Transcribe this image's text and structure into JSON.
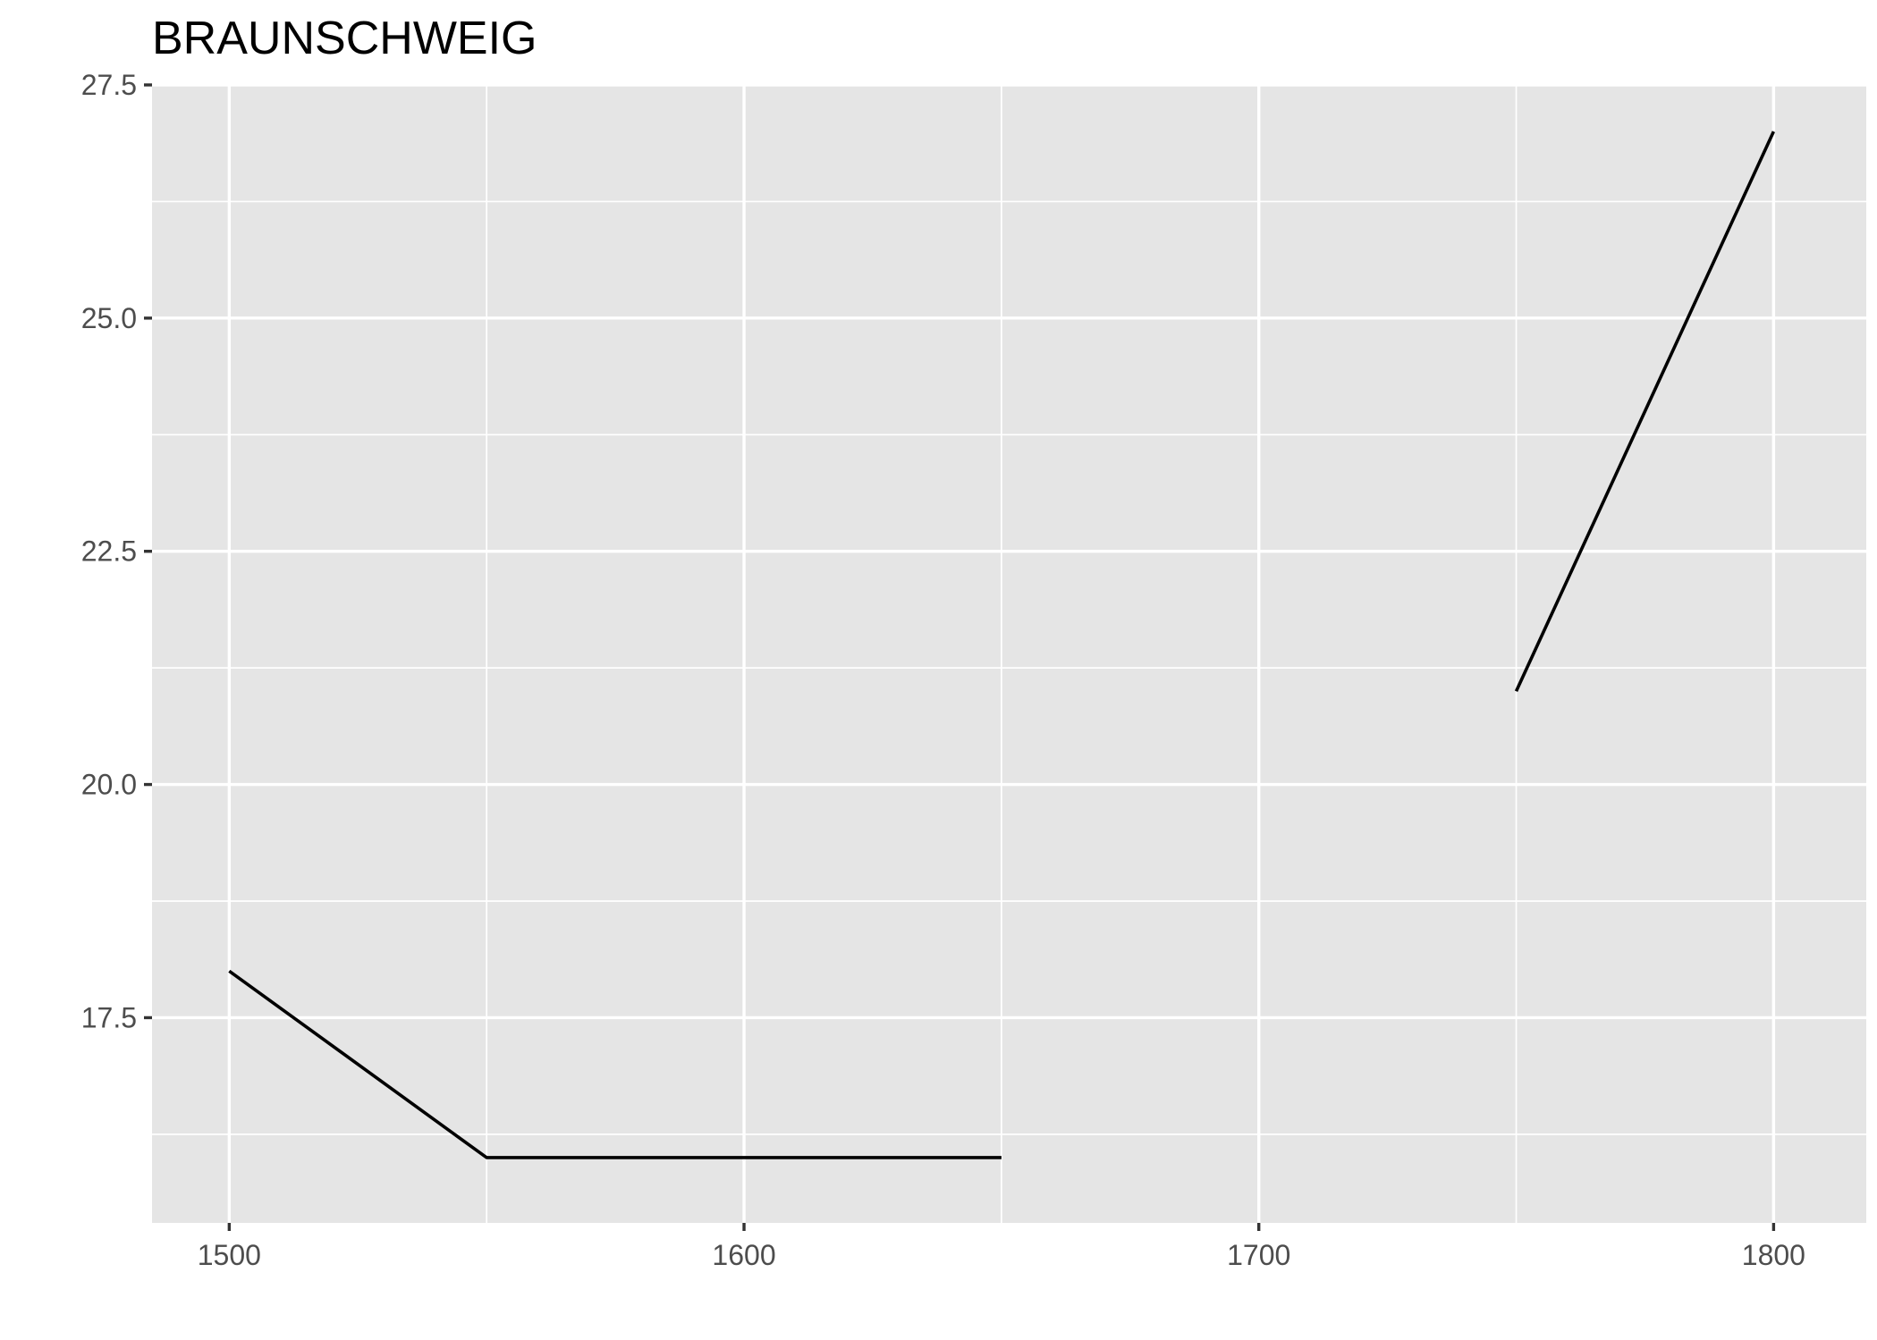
{
  "chart_data": {
    "type": "line",
    "title": "BRAUNSCHWEIG",
    "xlabel": "",
    "ylabel": "",
    "xlim": [
      1485,
      1818
    ],
    "ylim": [
      15.3,
      27.5
    ],
    "x_ticks": [
      1500,
      1600,
      1700,
      1800
    ],
    "x_tick_labels": [
      "1500",
      "1600",
      "1700",
      "1800"
    ],
    "x_minor_ticks": [
      1550,
      1650,
      1750
    ],
    "y_ticks": [
      17.5,
      20.0,
      22.5,
      25.0,
      27.5
    ],
    "y_tick_labels": [
      "17.5",
      "20.0",
      "22.5",
      "25.0",
      "27.5"
    ],
    "y_minor_ticks": [
      16.25,
      18.75,
      21.25,
      23.75,
      26.25
    ],
    "grid": true,
    "legend": "none",
    "series": [
      {
        "color": "#000000",
        "x": [
          1500,
          1550,
          1600,
          1650,
          1700,
          1750,
          1800
        ],
        "y": [
          18,
          16,
          16,
          16,
          null,
          21,
          27
        ]
      }
    ]
  }
}
